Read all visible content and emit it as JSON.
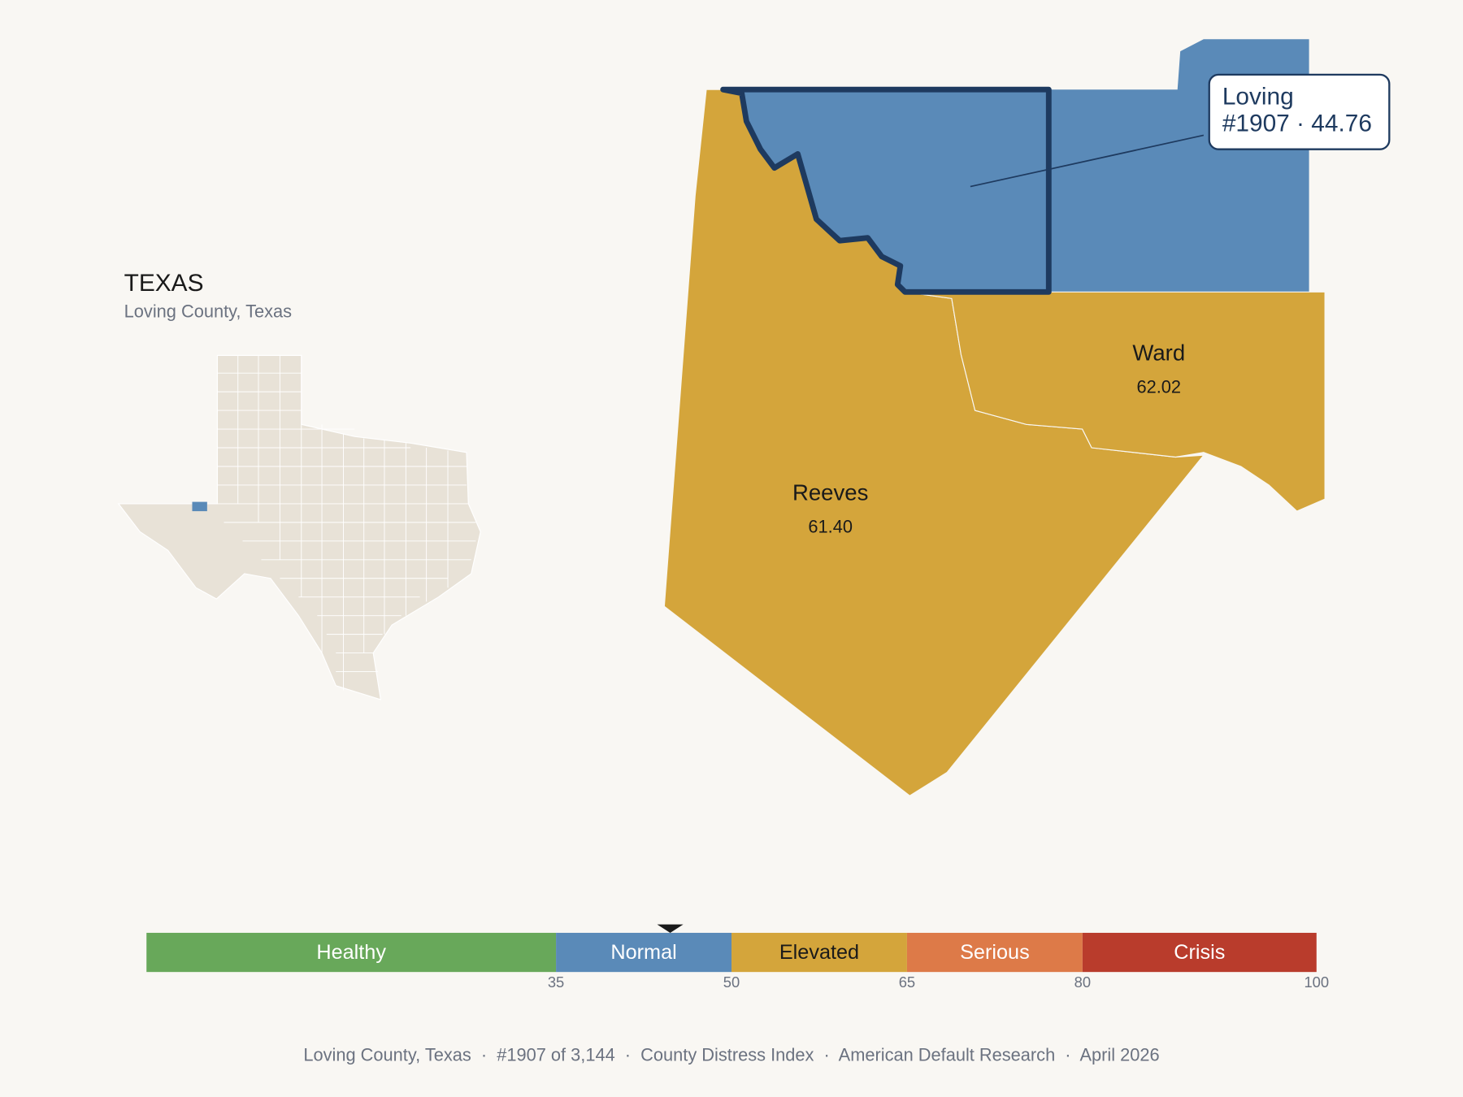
{
  "header": {
    "title": "TEXAS",
    "subtitle": "Loving County, Texas"
  },
  "selected": {
    "name": "Loving",
    "detail": "#1907 · 44.76",
    "score": 44.76
  },
  "counties": [
    {
      "name": "Reeves",
      "score": 61.4,
      "score_label": "61.40"
    },
    {
      "name": "Ward",
      "score": 62.02,
      "score_label": "62.02"
    }
  ],
  "scale": {
    "range": [
      0,
      100
    ],
    "ticks": [
      35,
      50,
      65,
      80,
      100
    ],
    "bands": [
      {
        "label": "Healthy",
        "color": "#68a85a"
      },
      {
        "label": "Normal",
        "color": "#5a8ab8"
      },
      {
        "label": "Elevated",
        "color": "#d4a53b"
      },
      {
        "label": "Serious",
        "color": "#dd7a48"
      },
      {
        "label": "Crisis",
        "color": "#b93c2c"
      }
    ]
  },
  "footer": "Loving County, Texas  ·  #1907 of 3,144  ·  County Distress Index  ·  American Default Research  ·  April 2026"
}
